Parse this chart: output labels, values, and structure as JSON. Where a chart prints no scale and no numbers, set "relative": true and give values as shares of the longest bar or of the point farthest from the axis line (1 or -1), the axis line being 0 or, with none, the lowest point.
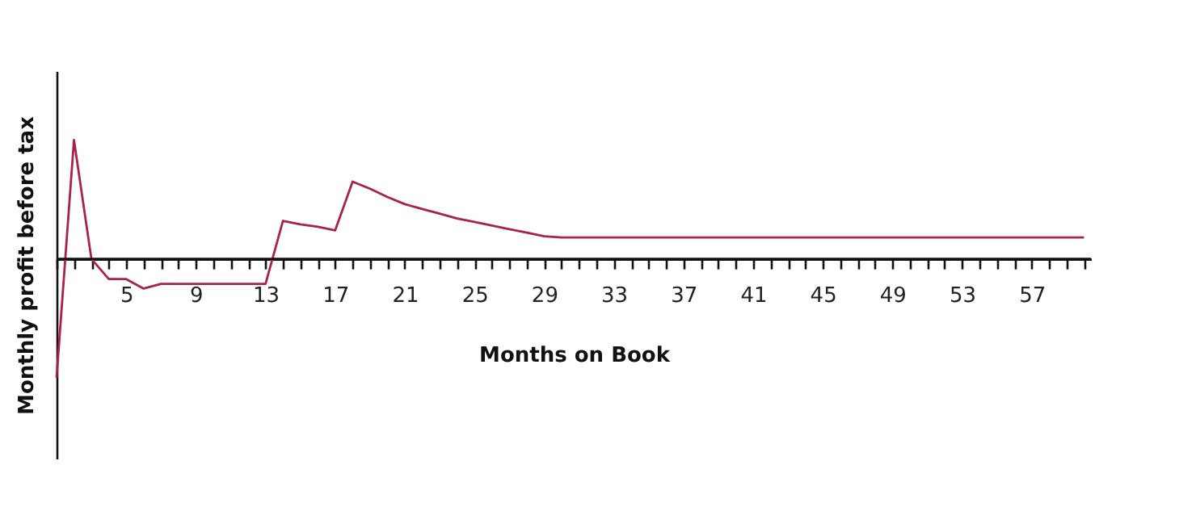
{
  "chart_data": {
    "type": "line",
    "xlabel": "Months on Book",
    "ylabel": "Monthly  profit before tax",
    "relative": true,
    "grid": false,
    "legend": false,
    "marker": "none",
    "line_style": "solid",
    "xlim": [
      1,
      60.4
    ],
    "xticks": [
      {
        "value": 1,
        "label": null
      },
      {
        "value": 2,
        "label": null
      },
      {
        "value": 3,
        "label": null
      },
      {
        "value": 4,
        "label": null
      },
      5,
      {
        "value": 6,
        "label": null
      },
      {
        "value": 7,
        "label": null
      },
      {
        "value": 8,
        "label": null
      },
      9,
      {
        "value": 10,
        "label": null
      },
      {
        "value": 11,
        "label": null
      },
      {
        "value": 12,
        "label": null
      },
      13,
      {
        "value": 14,
        "label": null
      },
      {
        "value": 15,
        "label": null
      },
      {
        "value": 16,
        "label": null
      },
      17,
      {
        "value": 18,
        "label": null
      },
      {
        "value": 19,
        "label": null
      },
      {
        "value": 20,
        "label": null
      },
      21,
      {
        "value": 22,
        "label": null
      },
      {
        "value": 23,
        "label": null
      },
      {
        "value": 24,
        "label": null
      },
      25,
      {
        "value": 26,
        "label": null
      },
      {
        "value": 27,
        "label": null
      },
      {
        "value": 28,
        "label": null
      },
      29,
      {
        "value": 30,
        "label": null
      },
      {
        "value": 31,
        "label": null
      },
      {
        "value": 32,
        "label": null
      },
      33,
      {
        "value": 34,
        "label": null
      },
      {
        "value": 35,
        "label": null
      },
      {
        "value": 36,
        "label": null
      },
      37,
      {
        "value": 38,
        "label": null
      },
      {
        "value": 39,
        "label": null
      },
      {
        "value": 40,
        "label": null
      },
      41,
      {
        "value": 42,
        "label": null
      },
      {
        "value": 43,
        "label": null
      },
      {
        "value": 44,
        "label": null
      },
      45,
      {
        "value": 46,
        "label": null
      },
      {
        "value": 47,
        "label": null
      },
      {
        "value": 48,
        "label": null
      },
      49,
      {
        "value": 50,
        "label": null
      },
      {
        "value": 51,
        "label": null
      },
      {
        "value": 52,
        "label": null
      },
      53,
      {
        "value": 54,
        "label": null
      },
      {
        "value": 55,
        "label": null
      },
      {
        "value": 56,
        "label": null
      },
      57,
      {
        "value": 58,
        "label": null
      },
      {
        "value": 59,
        "label": null
      },
      {
        "value": 60,
        "label": null
      }
    ],
    "x": [
      1,
      2,
      3,
      4,
      5,
      6,
      7,
      8,
      9,
      10,
      11,
      12,
      13,
      14,
      15,
      16,
      17,
      18,
      19,
      20,
      21,
      22,
      23,
      24,
      25,
      26,
      27,
      28,
      29,
      30,
      60
    ],
    "series": [
      {
        "color": "#a8224a",
        "values": [
          -1,
          1,
          0,
          -0.17,
          -0.17,
          -0.25,
          -0.21,
          -0.21,
          -0.21,
          -0.21,
          -0.21,
          -0.21,
          -0.21,
          0.32,
          0.29,
          0.27,
          0.24,
          0.65,
          0.59,
          0.52,
          0.46,
          0.42,
          0.38,
          0.34,
          0.31,
          0.28,
          0.25,
          0.22,
          0.19,
          0.18,
          0.18
        ]
      }
    ]
  }
}
